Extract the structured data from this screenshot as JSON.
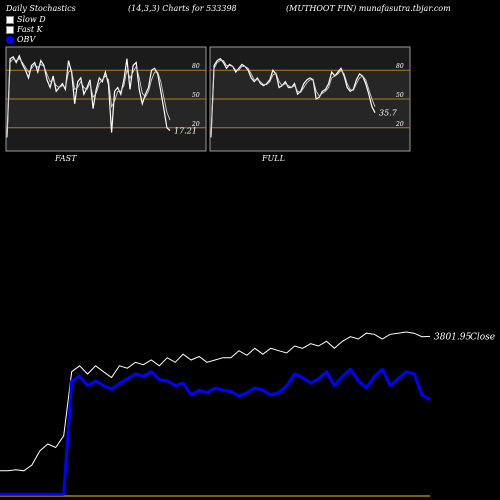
{
  "header": {
    "left": "Daily Stochastics",
    "center": "(14,3,3) Charts for 533398",
    "right": "(MUTHOOT FIN) munafasutra.tbjar.com"
  },
  "legend": [
    {
      "label": "Slow  D",
      "color": "#ffffff"
    },
    {
      "label": "Fast K",
      "color": "#ffffff"
    },
    {
      "label": "OBV",
      "color": "#0000ff"
    }
  ],
  "chart_data": [
    {
      "type": "line",
      "panel": "FAST",
      "title": "FAST",
      "ylim": [
        0,
        100
      ],
      "levels": [
        80,
        50,
        20
      ],
      "level_labels": [
        "80",
        "50",
        "20"
      ],
      "last_value_label": "17.21",
      "series": [
        {
          "values": [
            10,
            92,
            94,
            88,
            95,
            86,
            80,
            72,
            85,
            88,
            78,
            90,
            85,
            70,
            62,
            74,
            58,
            62,
            66,
            60,
            90,
            78,
            45,
            68,
            72,
            55,
            62,
            70,
            40,
            60,
            72,
            68,
            78,
            65,
            15,
            58,
            62,
            55,
            70,
            92,
            60,
            85,
            88,
            60,
            45,
            55,
            62,
            80,
            82,
            76,
            58,
            40,
            20,
            17.21
          ]
        },
        {
          "values": [
            10,
            88,
            92,
            90,
            92,
            88,
            83,
            78,
            82,
            86,
            83,
            86,
            84,
            76,
            68,
            70,
            64,
            62,
            64,
            62,
            78,
            80,
            60,
            62,
            68,
            62,
            60,
            66,
            52,
            56,
            66,
            70,
            74,
            70,
            42,
            48,
            58,
            58,
            64,
            80,
            72,
            78,
            84,
            72,
            56,
            52,
            58,
            70,
            78,
            78,
            68,
            52,
            36,
            28
          ]
        }
      ]
    },
    {
      "type": "line",
      "panel": "FULL",
      "title": "FULL",
      "ylim": [
        0,
        100
      ],
      "levels": [
        80,
        50,
        20
      ],
      "level_labels": [
        "80",
        "50",
        "20"
      ],
      "last_value_label": "35.7",
      "series": [
        {
          "values": [
            10,
            85,
            90,
            92,
            88,
            82,
            86,
            84,
            78,
            82,
            86,
            84,
            80,
            72,
            68,
            72,
            66,
            64,
            66,
            70,
            80,
            76,
            62,
            64,
            68,
            62,
            62,
            66,
            55,
            58,
            66,
            70,
            72,
            70,
            50,
            52,
            58,
            60,
            66,
            78,
            74,
            78,
            82,
            74,
            62,
            58,
            60,
            70,
            76,
            74,
            66,
            55,
            42,
            35.7
          ]
        },
        {
          "values": [
            10,
            82,
            88,
            90,
            90,
            85,
            85,
            84,
            80,
            80,
            84,
            84,
            82,
            76,
            70,
            70,
            68,
            65,
            65,
            68,
            75,
            77,
            68,
            64,
            66,
            64,
            62,
            64,
            58,
            57,
            62,
            67,
            70,
            70,
            58,
            53,
            56,
            58,
            62,
            72,
            74,
            76,
            80,
            76,
            66,
            60,
            59,
            66,
            72,
            74,
            70,
            60,
            50,
            42
          ]
        }
      ]
    },
    {
      "type": "line",
      "panel": "price",
      "last_value_label": "3801.95",
      "close_label": "Close",
      "series": [
        {
          "values": [
            2650,
            2650,
            2660,
            2650,
            2700,
            2820,
            2880,
            2850,
            2950,
            3500,
            3550,
            3480,
            3550,
            3500,
            3450,
            3550,
            3530,
            3580,
            3560,
            3600,
            3550,
            3620,
            3580,
            3650,
            3600,
            3630,
            3580,
            3600,
            3620,
            3620,
            3680,
            3640,
            3700,
            3650,
            3700,
            3680,
            3660,
            3720,
            3700,
            3740,
            3720,
            3760,
            3700,
            3760,
            3800,
            3780,
            3830,
            3820,
            3780,
            3820,
            3830,
            3840,
            3830,
            3800,
            3801.95
          ]
        },
        {
          "values": [
            2450,
            2450,
            2450,
            2450,
            2450,
            2450,
            2450,
            2450,
            2450,
            3420,
            3460,
            3380,
            3420,
            3380,
            3350,
            3400,
            3440,
            3480,
            3460,
            3500,
            3430,
            3420,
            3380,
            3400,
            3300,
            3340,
            3320,
            3360,
            3340,
            3330,
            3290,
            3320,
            3360,
            3340,
            3300,
            3320,
            3380,
            3480,
            3450,
            3400,
            3440,
            3500,
            3380,
            3460,
            3520,
            3420,
            3360,
            3460,
            3520,
            3380,
            3440,
            3500,
            3480,
            3300,
            3260
          ]
        }
      ]
    }
  ]
}
